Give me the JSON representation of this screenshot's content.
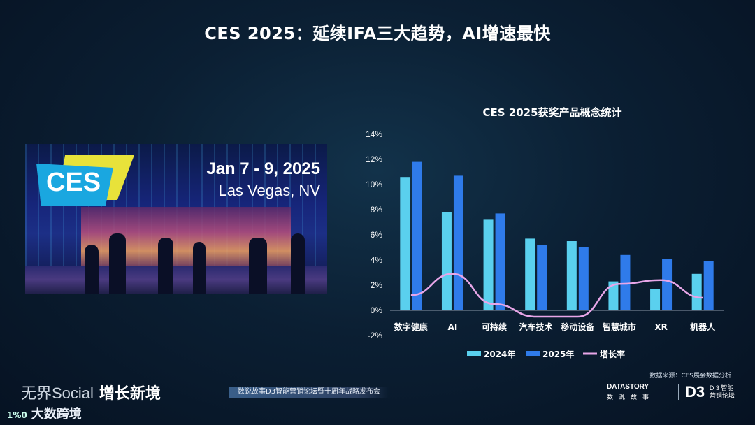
{
  "title": "CES 2025：延续IFA三大趋势，AI增速最快",
  "photo": {
    "logo_text": "CES",
    "date_text": "Jan 7 - 9, 2025",
    "location_text": "Las Vegas, NV"
  },
  "colors": {
    "bar_2024": "#5ad0ee",
    "bar_2025": "#2f7bea",
    "line": "#e8a6e8"
  },
  "chart_data": {
    "type": "bar",
    "title": "CES 2025获奖产品概念统计",
    "categories": [
      "数字健康",
      "AI",
      "可持续",
      "汽车技术",
      "移动设备",
      "智慧城市",
      "XR",
      "机器人"
    ],
    "series": [
      {
        "name": "2024年",
        "type": "bar",
        "values": [
          10.6,
          7.8,
          7.2,
          5.7,
          5.5,
          2.3,
          1.7,
          2.9
        ]
      },
      {
        "name": "2025年",
        "type": "bar",
        "values": [
          11.8,
          10.7,
          7.7,
          5.2,
          5.0,
          4.4,
          4.1,
          3.9
        ]
      },
      {
        "name": "增长率",
        "type": "line",
        "values": [
          1.2,
          2.9,
          0.5,
          -0.5,
          -0.5,
          2.1,
          2.4,
          1.0
        ]
      }
    ],
    "y_ticks": [
      "14%",
      "12%",
      "10%",
      "8%",
      "6%",
      "4%",
      "2%",
      "0%",
      "-2%"
    ],
    "ylim": [
      -2,
      14
    ],
    "grid": false,
    "legend_position": "bottom"
  },
  "source_text": "数据来源：CES展会数据分析",
  "footer": {
    "slogan_a": "无界Social",
    "slogan_b": "增长新境",
    "banner": "数说故事D3智能营销论坛暨十周年战略发布会",
    "brand": "大数跨境",
    "brand_mark": "1%0",
    "ds_logo": "DATASTORY",
    "ds_sub": "数说故事",
    "d3_big": "D3",
    "d3_small_1": "D 3 智能",
    "d3_small_2": "营销论坛"
  }
}
